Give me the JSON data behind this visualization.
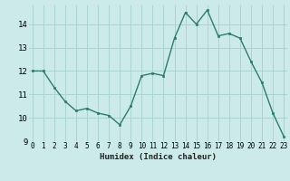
{
  "x": [
    0,
    1,
    2,
    3,
    4,
    5,
    6,
    7,
    8,
    9,
    10,
    11,
    12,
    13,
    14,
    15,
    16,
    17,
    18,
    19,
    20,
    21,
    22,
    23
  ],
  "y": [
    12.0,
    12.0,
    11.3,
    10.7,
    10.3,
    10.4,
    10.2,
    10.1,
    9.7,
    10.5,
    11.8,
    11.9,
    11.8,
    13.4,
    14.5,
    14.0,
    14.6,
    13.5,
    13.6,
    13.4,
    12.4,
    11.5,
    10.2,
    9.2
  ],
  "xlabel": "Humidex (Indice chaleur)",
  "ylim": [
    9,
    14.8
  ],
  "xlim": [
    -0.3,
    23.3
  ],
  "yticks": [
    9,
    10,
    11,
    12,
    13,
    14
  ],
  "xticks": [
    0,
    1,
    2,
    3,
    4,
    5,
    6,
    7,
    8,
    9,
    10,
    11,
    12,
    13,
    14,
    15,
    16,
    17,
    18,
    19,
    20,
    21,
    22,
    23
  ],
  "line_color": "#2a7d6f",
  "marker_color": "#2a7d6f",
  "bg_color": "#cceae7",
  "grid_color": "#aad4cf",
  "title": ""
}
